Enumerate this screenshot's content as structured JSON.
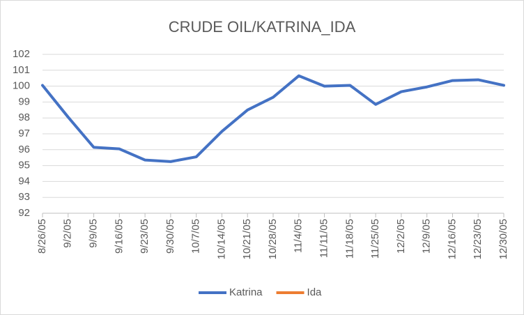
{
  "chart_data": {
    "type": "line",
    "title": "CRUDE OIL/KATRINA_IDA",
    "categories": [
      "8/26/05",
      "9/2/05",
      "9/9/05",
      "9/16/05",
      "9/23/05",
      "9/30/05",
      "10/7/05",
      "10/14/05",
      "10/21/05",
      "10/28/05",
      "11/4/05",
      "11/11/05",
      "11/18/05",
      "11/25/05",
      "12/2/05",
      "12/9/05",
      "12/16/05",
      "12/23/05",
      "12/30/05"
    ],
    "series": [
      {
        "name": "Katrina",
        "color": "#4472c4",
        "values": [
          100.05,
          98.05,
          96.15,
          96.05,
          95.35,
          95.25,
          95.55,
          97.15,
          98.5,
          99.3,
          100.65,
          100.0,
          100.05,
          98.85,
          99.65,
          99.95,
          100.35,
          100.4,
          100.05
        ]
      },
      {
        "name": "Ida",
        "color": "#ed7d31",
        "values": [
          null,
          null,
          null,
          null,
          null,
          null,
          null,
          null,
          null,
          null,
          null,
          null,
          null,
          null,
          null,
          null,
          null,
          null,
          null
        ]
      }
    ],
    "ylim": [
      92,
      102
    ],
    "yticks": [
      92,
      93,
      94,
      95,
      96,
      97,
      98,
      99,
      100,
      101,
      102
    ],
    "grid": true,
    "legend": "bottom"
  }
}
